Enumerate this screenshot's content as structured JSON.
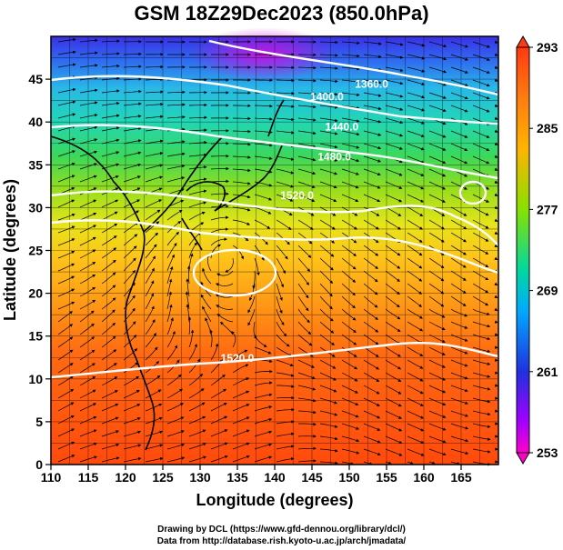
{
  "title": "GSM 18Z29Dec2023 (850.0hPa)",
  "axes": {
    "xlabel": "Longitude (degrees)",
    "ylabel": "Latitude  (degrees)",
    "xlim": [
      110,
      170
    ],
    "ylim": [
      0,
      50
    ],
    "xticks": [
      110,
      115,
      120,
      125,
      130,
      135,
      140,
      145,
      150,
      155,
      160,
      165
    ],
    "yticks": [
      0,
      5,
      10,
      15,
      20,
      25,
      30,
      35,
      40,
      45
    ]
  },
  "colorbar": {
    "min": 253,
    "max": 293,
    "tick_labels": [
      "293",
      "285",
      "277",
      "269",
      "261",
      "253"
    ],
    "tick_values": [
      293,
      285,
      277,
      269,
      261,
      253
    ],
    "colors": [
      "#ff00cc",
      "#aa00ff",
      "#2222dd",
      "#1e90ff",
      "#00cccc",
      "#33cc33",
      "#aadd00",
      "#ffcc00",
      "#ff8800",
      "#ff3300"
    ]
  },
  "contours": [
    {
      "label": "1360.0",
      "value": 1360,
      "label_lon": 153,
      "label_lat": 44
    },
    {
      "label": "1400.0",
      "value": 1400,
      "label_lon": 147,
      "label_lat": 42.5
    },
    {
      "label": "1440.0",
      "value": 1440,
      "label_lon": 149,
      "label_lat": 39
    },
    {
      "label": "1480.0",
      "value": 1480,
      "label_lon": 148,
      "label_lat": 35.5
    },
    {
      "label": "1520.0",
      "value": 1520,
      "label_lon": 143,
      "label_lat": 31
    },
    {
      "label": "1520.0",
      "value": 1520,
      "label_lon": 135,
      "label_lat": 12
    }
  ],
  "credits": {
    "line1": "Drawing by DCL (https://www.gfd-dennou.org/library/dcl/)",
    "line2": "Data from http://database.rish.kyoto-u.ac.jp/arch/jmadata/"
  }
}
